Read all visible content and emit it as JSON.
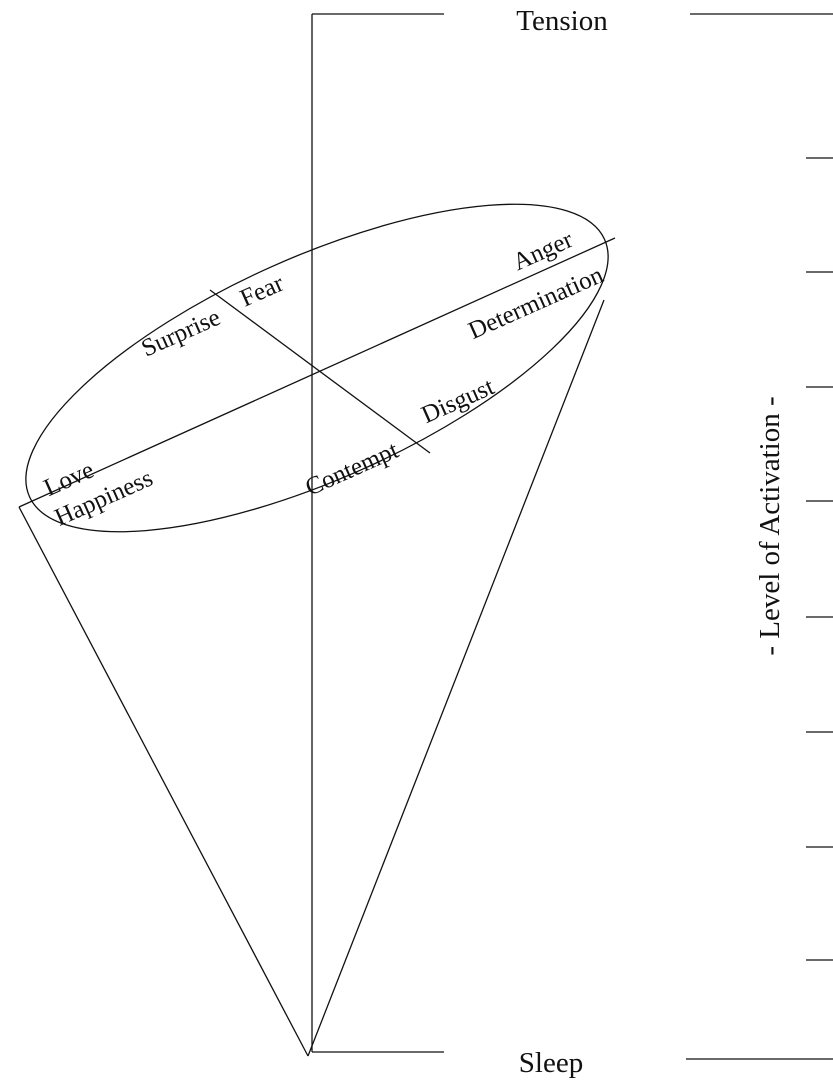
{
  "diagram": {
    "top_label": "Tension",
    "bottom_label": "Sleep",
    "axis_label": "- Level of Activation -",
    "emotions": {
      "anger": "Anger",
      "determination": "Determination",
      "fear": "Fear",
      "surprise": "Surprise",
      "disgust": "Disgust",
      "contempt": "Contempt",
      "love": "Love",
      "happiness": "Happiness"
    }
  }
}
